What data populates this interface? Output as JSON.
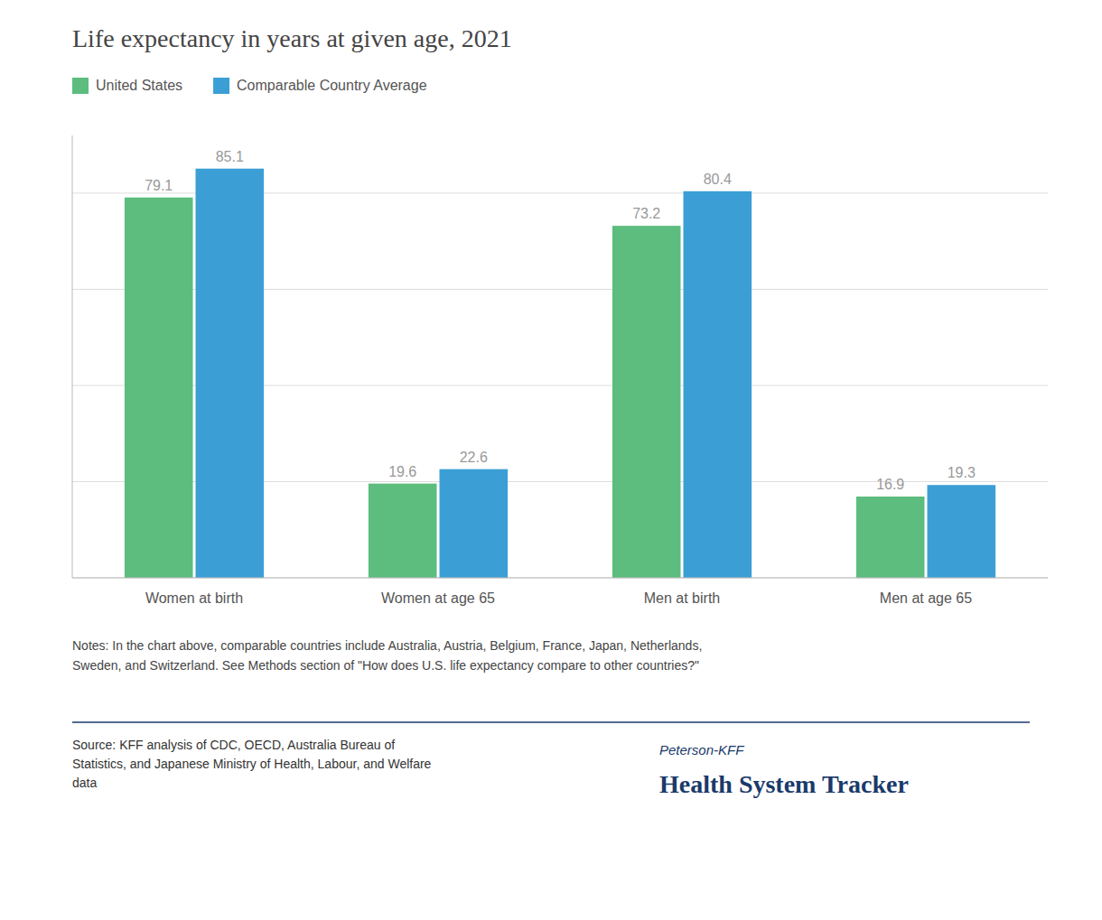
{
  "chart_data": {
    "type": "bar",
    "title": "Life expectancy in years at given age, 2021",
    "categories": [
      "Women at birth",
      "Women at age 65",
      "Men at birth",
      "Men at age 65"
    ],
    "series": [
      {
        "name": "United States",
        "color": "#5cbd7e",
        "values": [
          79.1,
          19.6,
          73.2,
          16.9
        ]
      },
      {
        "name": "Comparable Country Average",
        "color": "#3b9fd6",
        "values": [
          85.1,
          22.6,
          80.4,
          19.3
        ]
      }
    ],
    "ylim": [
      0,
      92
    ],
    "yticks": [
      0,
      20,
      40,
      60,
      80
    ],
    "grid": true,
    "legend": "top-left",
    "data_labels": true,
    "tick_labels": "x",
    "notes": "Notes: In the chart above, comparable countries include Australia, Austria, Belgium, France, Japan, Netherlands,\nSweden, and Switzerland. See Methods section of \"How does U.S. life expectancy compare to other countries?\"",
    "source": "Source: KFF analysis of CDC, OECD, Australia Bureau of\nStatistics, and Japanese Ministry of Health, Labour, and Welfare\ndata",
    "annotations": [
      "Peterson-KFF",
      "Health System Tracker"
    ]
  }
}
